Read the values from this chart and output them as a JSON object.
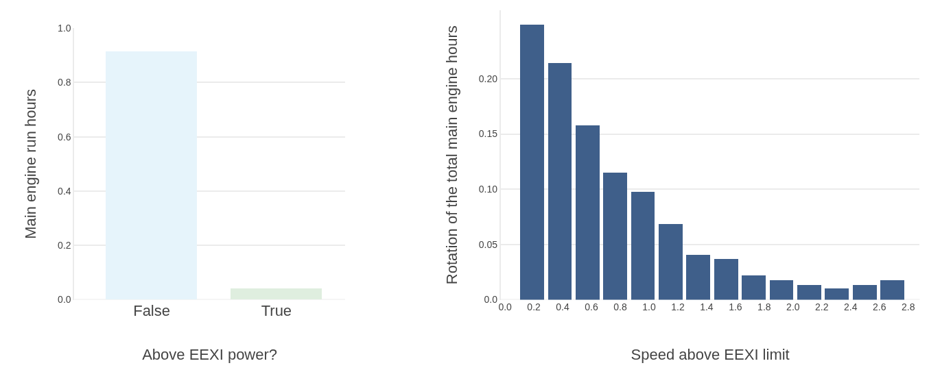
{
  "chart_data": [
    {
      "type": "bar",
      "xlabel": "Above EEXI power?",
      "ylabel": "Main engine run hours",
      "categories": [
        "False",
        "True"
      ],
      "values": [
        0.915,
        0.04
      ],
      "colors": [
        "#e6f4fb",
        "#dfeedf"
      ],
      "ylim": [
        0,
        1.0
      ],
      "yticks": [
        {
          "value": 0,
          "label": "0.0"
        },
        0.2,
        0.4,
        0.6,
        0.8,
        {
          "value": 1,
          "label": "1.0"
        }
      ],
      "grid": "y"
    },
    {
      "type": "histogram",
      "xlabel": "Speed above EEXI limit",
      "ylabel": "Rotation of the total main engine hours",
      "color": "#3f5f8a",
      "bins": [
        0.09,
        0.283,
        0.475,
        0.668,
        0.86,
        1.053,
        1.245,
        1.438,
        1.63,
        1.823,
        2.015,
        2.208,
        2.4,
        2.593,
        2.785
      ],
      "values": [
        0.249,
        0.214,
        0.158,
        0.115,
        0.098,
        0.0685,
        0.0405,
        0.037,
        0.022,
        0.018,
        0.0135,
        0.0105,
        0.0135,
        0.018
      ],
      "xlim": [
        -0.03,
        2.88
      ],
      "xticks": [
        {
          "value": 0,
          "label": "0.0"
        },
        0.2,
        0.4,
        0.6,
        0.8,
        {
          "value": 1,
          "label": "1.0"
        },
        1.2,
        1.4,
        1.6,
        1.8,
        {
          "value": 2,
          "label": "2.0"
        },
        2.2,
        2.4,
        2.6,
        2.8
      ],
      "ylim": [
        0,
        0.262
      ],
      "yticks": [
        {
          "value": 0,
          "label": "0.0"
        },
        0.05,
        {
          "value": 0.1,
          "label": "0.10"
        },
        0.15,
        {
          "value": 0.2,
          "label": "0.20"
        }
      ],
      "grid": "y"
    }
  ]
}
